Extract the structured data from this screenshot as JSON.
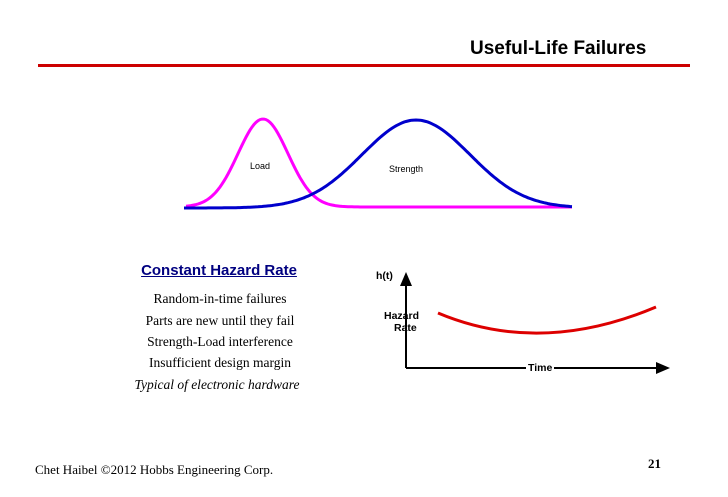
{
  "slide": {
    "title": "Useful-Life Failures",
    "page_number": "21",
    "footer": "Chet Haibel  ©2012 Hobbs Engineering Corp."
  },
  "distribution_diagram": {
    "load_label": "Load",
    "strength_label": "Strength",
    "colors": {
      "load": "#ff00ff",
      "strength": "#0000cc"
    }
  },
  "text_block": {
    "heading": "Constant Hazard Rate",
    "bullets": [
      "Random-in-time failures",
      "Parts are new until they fail",
      "Strength-Load interference",
      "Insufficient design margin"
    ],
    "note": "Typical of electronic hardware"
  },
  "hazard_diagram": {
    "y_axis_label": "h(t)",
    "curve_label_line1": "Hazard",
    "curve_label_line2": "Rate",
    "x_axis_label": "Time",
    "colors": {
      "curve": "#dd0000",
      "axes": "#000000"
    }
  },
  "colors": {
    "rule": "#cc0000",
    "heading": "#000080"
  }
}
